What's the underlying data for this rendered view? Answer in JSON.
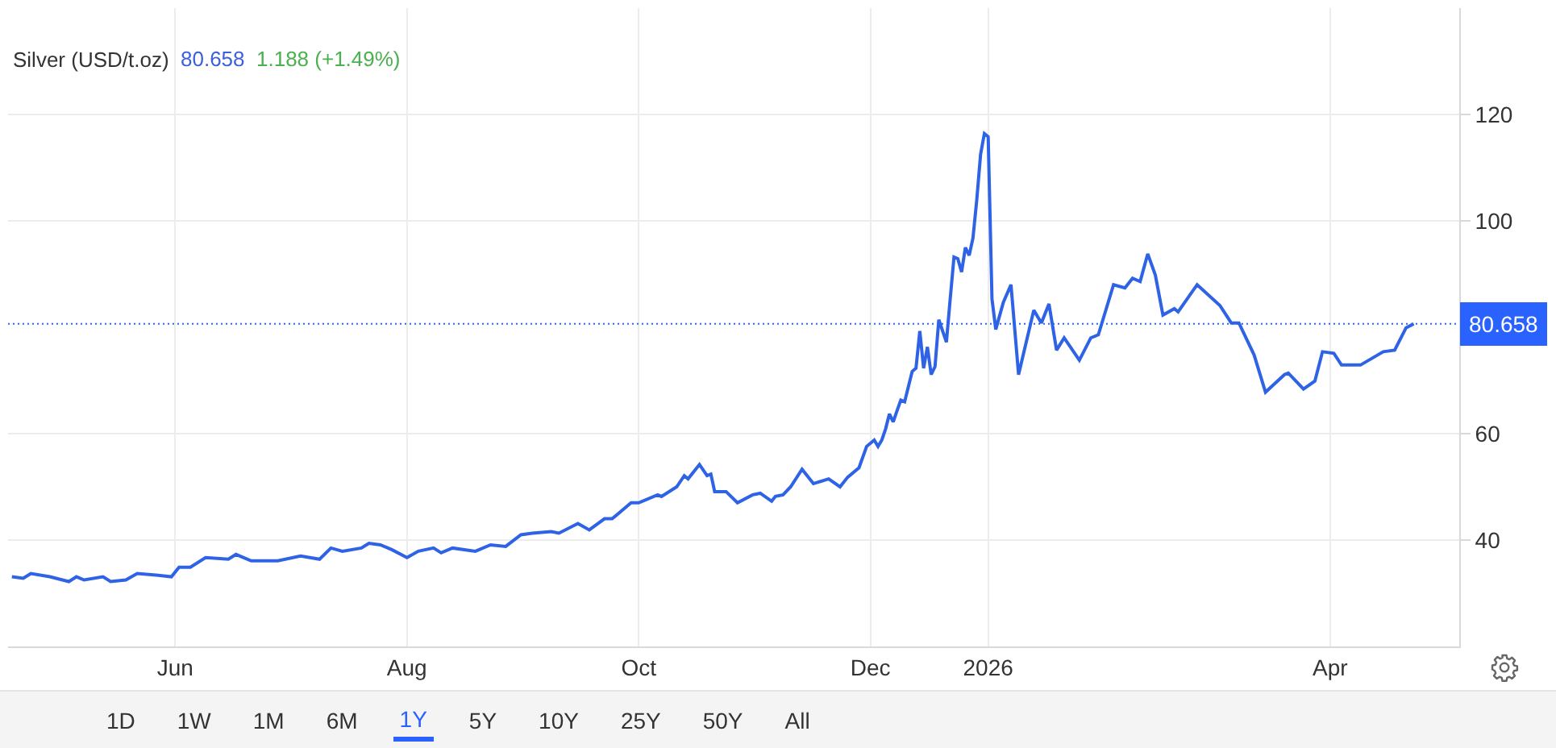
{
  "chart_data": {
    "type": "line",
    "title": "Silver (USD/t.oz)",
    "annotations": [
      "80.658",
      "1.188 (+1.49%)",
      "1D",
      "1W",
      "1M",
      "6M",
      "1Y",
      "5Y",
      "10Y",
      "25Y",
      "50Y",
      "All"
    ],
    "x": [
      "2025-04-19",
      "2025-04-22",
      "2025-04-24",
      "2025-04-29",
      "2025-05-04",
      "2025-05-06",
      "2025-05-08",
      "2025-05-13",
      "2025-05-15",
      "2025-05-19",
      "2025-05-22",
      "2025-05-27",
      "2025-05-31",
      "2025-06-02",
      "2025-06-05",
      "2025-06-09",
      "2025-06-15",
      "2025-06-17",
      "2025-06-21",
      "2025-06-25",
      "2025-06-28",
      "2025-07-04",
      "2025-07-09",
      "2025-07-12",
      "2025-07-15",
      "2025-07-20",
      "2025-07-22",
      "2025-07-25",
      "2025-07-28",
      "2025-08-01",
      "2025-08-04",
      "2025-08-08",
      "2025-08-10",
      "2025-08-13",
      "2025-08-19",
      "2025-08-23",
      "2025-08-27",
      "2025-08-31",
      "2025-09-03",
      "2025-09-08",
      "2025-09-10",
      "2025-09-15",
      "2025-09-18",
      "2025-09-22",
      "2025-09-24",
      "2025-09-29",
      "2025-10-01",
      "2025-10-06",
      "2025-10-07",
      "2025-10-11",
      "2025-10-13",
      "2025-10-14",
      "2025-10-17",
      "2025-10-19",
      "2025-10-20",
      "2025-10-21",
      "2025-10-24",
      "2025-10-27",
      "2025-10-31",
      "2025-11-02",
      "2025-11-05",
      "2025-11-06",
      "2025-11-08",
      "2025-11-10",
      "2025-11-13",
      "2025-11-16",
      "2025-11-20",
      "2025-11-23",
      "2025-11-25",
      "2025-11-28",
      "2025-11-30",
      "2025-12-02",
      "2025-12-03",
      "2025-12-04",
      "2025-12-05",
      "2025-12-06",
      "2025-12-07",
      "2025-12-08",
      "2025-12-09",
      "2025-12-10",
      "2025-12-12",
      "2025-12-13",
      "2025-12-14",
      "2025-12-15",
      "2025-12-16",
      "2025-12-17",
      "2025-12-18",
      "2025-12-19",
      "2025-12-21",
      "2025-12-22",
      "2025-12-23",
      "2025-12-24",
      "2025-12-25",
      "2025-12-26",
      "2025-12-27",
      "2025-12-28",
      "2025-12-29",
      "2025-12-30",
      "2025-12-31",
      "2026-01-01",
      "2026-01-02",
      "2026-01-03",
      "2026-01-05",
      "2026-01-07",
      "2026-01-09",
      "2026-01-13",
      "2026-01-15",
      "2026-01-17",
      "2026-01-19",
      "2026-01-21",
      "2026-01-25",
      "2026-01-28",
      "2026-01-30",
      "2026-02-03",
      "2026-02-06",
      "2026-02-08",
      "2026-02-10",
      "2026-02-12",
      "2026-02-14",
      "2026-02-16",
      "2026-02-19",
      "2026-02-20",
      "2026-02-25",
      "2026-03-03",
      "2026-03-06",
      "2026-03-08",
      "2026-03-12",
      "2026-03-15",
      "2026-03-20",
      "2026-03-21",
      "2026-03-25",
      "2026-03-28",
      "2026-03-30",
      "2026-04-02",
      "2026-04-04",
      "2026-04-09",
      "2026-04-15",
      "2026-04-18",
      "2026-04-21",
      "2026-04-23"
    ],
    "series": [
      {
        "color": "#2f63e6",
        "values": [
          33.1,
          32.8,
          33.7,
          33.1,
          32.2,
          33.1,
          32.5,
          33.1,
          32.2,
          32.5,
          33.7,
          33.4,
          33.1,
          34.9,
          34.9,
          36.7,
          36.4,
          37.3,
          36.1,
          36.1,
          36.1,
          37.0,
          36.4,
          38.5,
          37.9,
          38.5,
          39.4,
          39.1,
          38.2,
          36.7,
          37.9,
          38.5,
          37.6,
          38.5,
          37.9,
          39.1,
          38.8,
          41.0,
          41.3,
          41.6,
          41.3,
          43.1,
          41.9,
          44.0,
          44.0,
          47.0,
          47.0,
          48.5,
          48.2,
          50.0,
          52.1,
          51.5,
          54.2,
          52.1,
          52.4,
          49.1,
          49.1,
          47.0,
          48.5,
          48.8,
          47.3,
          48.2,
          48.5,
          50.0,
          53.3,
          50.6,
          51.5,
          50.0,
          51.8,
          53.6,
          57.6,
          58.8,
          57.6,
          58.8,
          60.9,
          63.7,
          62.2,
          64.3,
          66.3,
          66.0,
          71.7,
          72.3,
          79.3,
          72.3,
          76.3,
          71.1,
          72.6,
          81.4,
          77.2,
          85.3,
          93.2,
          92.9,
          90.4,
          95.0,
          93.5,
          96.8,
          104.0,
          112.5,
          116.4,
          115.8,
          85.3,
          79.6,
          84.7,
          88.0,
          71.1,
          83.2,
          80.8,
          84.4,
          75.7,
          78.0,
          73.8,
          78.0,
          78.6,
          88.0,
          87.4,
          89.2,
          88.6,
          93.8,
          89.8,
          82.3,
          83.5,
          82.9,
          88.0,
          84.1,
          80.8,
          80.8,
          74.8,
          67.8,
          71.1,
          71.4,
          68.4,
          69.9,
          75.4,
          75.1,
          72.9,
          72.9,
          75.4,
          75.7,
          79.9,
          80.658
        ]
      }
    ],
    "xlim": [
      "2025-04-18",
      "2026-05-05"
    ],
    "xticks": [
      {
        "value": "2025-06-01",
        "label": "Jun"
      },
      {
        "value": "2025-08-01",
        "label": "Aug"
      },
      {
        "value": "2025-10-01",
        "label": "Oct"
      },
      {
        "value": "2025-12-01",
        "label": "Dec"
      },
      {
        "value": "2026-01-01",
        "label": "2026"
      },
      {
        "value": "2026-04-01",
        "label": "Apr"
      }
    ],
    "ylim": [
      20,
      140
    ],
    "yticks": [
      40,
      60,
      100,
      120
    ],
    "ref_lines": [
      {
        "axis": "y",
        "value": 80.658,
        "label": "80.658",
        "color": "#2962ff",
        "line_style": "dotted"
      }
    ],
    "grid": true
  }
}
